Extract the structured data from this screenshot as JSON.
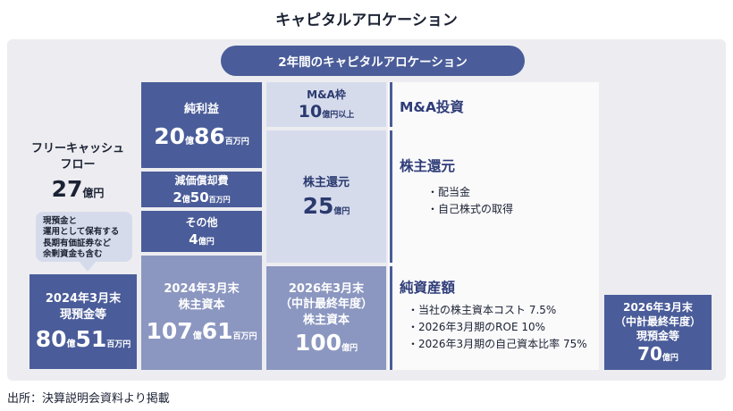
{
  "title": "キャピタルアロケーション",
  "banner": "2年間のキャピタルアロケーション",
  "fcf": {
    "label_line1": "フリーキャッシュ",
    "label_line2": "フロー",
    "value": "27",
    "unit": "億円"
  },
  "note": {
    "line1": "現預金と",
    "line2": "運用として保有する",
    "line3": "長期有価証券など",
    "line4": "余剰資金も含む"
  },
  "cash_2024": {
    "label_line1": "2024年3月末",
    "label_line2": "現預金等",
    "num1": "80",
    "unit1": "億",
    "num2": "51",
    "unit2": "百万円"
  },
  "net_income": {
    "label": "純利益",
    "num1": "20",
    "unit1": "億",
    "num2": "86",
    "unit2": "百万円"
  },
  "depreciation": {
    "label": "減価償却費",
    "num1": "2",
    "unit1": "億",
    "num2": "50",
    "unit2": "百万円"
  },
  "other": {
    "label": "その他",
    "num": "4",
    "unit": "億円"
  },
  "equity_2024": {
    "label_line1": "2024年3月末",
    "label_line2": "株主資本",
    "num1": "107",
    "unit1": "億",
    "num2": "61",
    "unit2": "百万円"
  },
  "ma_frame": {
    "label": "M&A枠",
    "num": "10",
    "unit": "億円以上"
  },
  "return_box": {
    "label": "株主還元",
    "num": "25",
    "unit": "億円"
  },
  "equity_2026": {
    "label_line1": "2026年3月末",
    "label_line2": "（中計最終年度）",
    "label_line3": "株主資本",
    "num": "100",
    "unit": "億円"
  },
  "ma_section": {
    "heading": "M&A投資"
  },
  "return_section": {
    "heading": "株主還元",
    "bullets": [
      "・配当金",
      "・自己株式の取得"
    ]
  },
  "net_assets_section": {
    "heading": "純資産額",
    "bullets": [
      "・当社の株主資本コスト 7.5%",
      "・2026年3月期のROE 10%",
      "・2026年3月期の自己資本比率 75%"
    ]
  },
  "cash_2026": {
    "label_line1": "2026年3月末",
    "label_line2": "（中計最終年度）",
    "label_line3": "現預金等",
    "num": "70",
    "unit": "億円"
  },
  "source": "出所：決算説明会資料より掲載"
}
